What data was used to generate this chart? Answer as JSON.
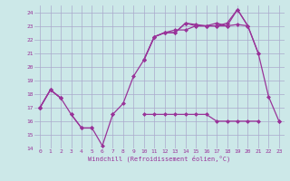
{
  "background_color": "#cce8e8",
  "grid_color": "#aaaacc",
  "line_color": "#993399",
  "marker": "D",
  "markersize": 2,
  "linewidth": 0.9,
  "xlabel": "Windchill (Refroidissement éolien,°C)",
  "xlim": [
    -0.5,
    23.5
  ],
  "ylim": [
    14,
    24.5
  ],
  "yticks": [
    14,
    15,
    16,
    17,
    18,
    19,
    20,
    21,
    22,
    23,
    24
  ],
  "xticks": [
    0,
    1,
    2,
    3,
    4,
    5,
    6,
    7,
    8,
    9,
    10,
    11,
    12,
    13,
    14,
    15,
    16,
    17,
    18,
    19,
    20,
    21,
    22,
    23
  ],
  "series": [
    {
      "segments": [
        [
          [
            0,
            1,
            2
          ],
          [
            17.0,
            18.3,
            17.7
          ]
        ],
        [
          [
            10,
            11,
            12,
            13,
            14,
            15,
            16,
            17,
            18,
            19,
            20,
            21
          ],
          [
            20.5,
            22.2,
            22.5,
            22.5,
            23.2,
            23.0,
            23.0,
            23.0,
            23.0,
            23.1,
            23.0,
            21.0
          ]
        ]
      ]
    },
    {
      "segments": [
        [
          [
            0,
            1,
            2
          ],
          [
            17.0,
            18.3,
            17.7
          ]
        ],
        [
          [
            10,
            11,
            12,
            13,
            14,
            15,
            16,
            17,
            18,
            19,
            20
          ],
          [
            20.5,
            22.2,
            22.5,
            22.7,
            22.7,
            23.0,
            23.0,
            23.2,
            23.0,
            24.2,
            23.0
          ]
        ]
      ]
    },
    {
      "segments": [
        [
          [
            0,
            1,
            2,
            3,
            4,
            5,
            6,
            7,
            8,
            9,
            10,
            11,
            12,
            13,
            14,
            15,
            16,
            17,
            18,
            19,
            20,
            21,
            22,
            23
          ],
          [
            17.0,
            18.3,
            17.7,
            16.5,
            15.5,
            15.5,
            14.2,
            16.5,
            17.3,
            19.3,
            20.5,
            22.2,
            22.5,
            22.5,
            23.2,
            23.1,
            23.0,
            23.0,
            23.2,
            24.2,
            23.0,
            21.0,
            17.8,
            16.0
          ]
        ]
      ]
    },
    {
      "segments": [
        [
          [
            0
          ],
          [
            17.0
          ]
        ],
        [
          [
            3,
            4,
            5
          ],
          [
            16.5,
            15.5,
            15.5
          ]
        ],
        [
          [
            7
          ],
          [
            16.5
          ]
        ],
        [
          [
            10,
            11,
            12,
            13,
            14,
            15,
            16,
            17,
            18,
            19,
            20,
            21
          ],
          [
            16.5,
            16.5,
            16.5,
            16.5,
            16.5,
            16.5,
            16.5,
            16.0,
            16.0,
            16.0,
            16.0,
            16.0
          ]
        ],
        [
          [
            23
          ],
          [
            16.0
          ]
        ]
      ]
    }
  ]
}
